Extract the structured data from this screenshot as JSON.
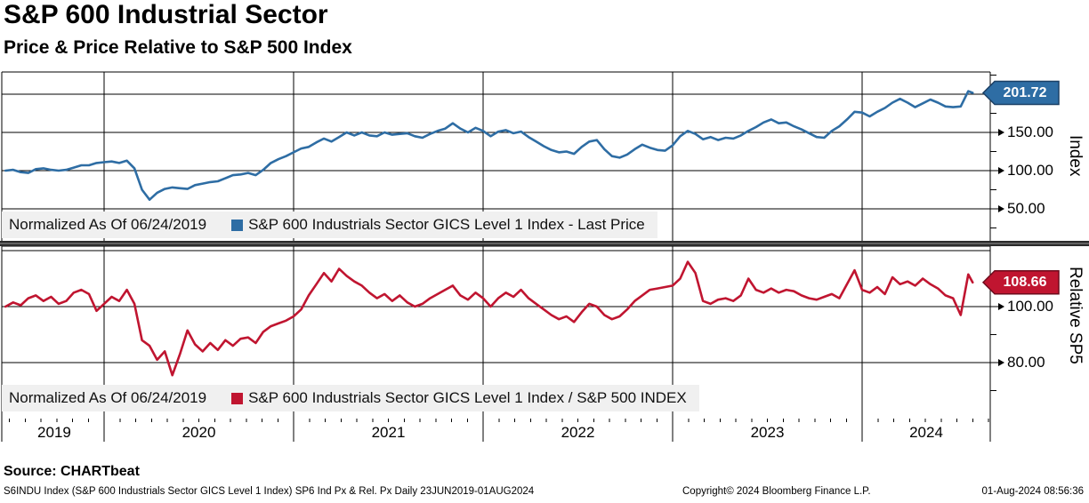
{
  "header": {
    "title": "S&P 600 Industrial Sector",
    "subtitle": "Price & Price Relative to S&P 500 Index"
  },
  "colors": {
    "blue": "#2e6da4",
    "red": "#c01530",
    "badge_blue_border": "#1b4066",
    "badge_red_border": "#6e0b1c",
    "grid": "#000000",
    "separator": "#2b2b2b",
    "legend_bg": "#f0f0f0"
  },
  "panels": [
    {
      "name": "price",
      "axis_title": "Index",
      "badge": "201.72",
      "legend": {
        "normalized": "Normalized As Of 06/24/2019",
        "series_label": "S&P 600 Industrials Sector GICS Level 1 Index - Last Price"
      },
      "ticks": [
        {
          "label": "150.00",
          "value": 150
        },
        {
          "label": "100.00",
          "value": 100
        },
        {
          "label": "50.00",
          "value": 50
        }
      ],
      "minor_ticks": [
        225,
        175,
        125,
        75,
        25
      ],
      "gridlines": [
        200,
        150,
        100,
        50
      ]
    },
    {
      "name": "relative",
      "axis_title": "Relative SP5",
      "badge": "108.66",
      "legend": {
        "normalized": "Normalized As Of 06/24/2019",
        "series_label": "S&P 600 Industrials Sector GICS Level 1 Index / S&P 500 INDEX"
      },
      "ticks": [
        {
          "label": "100.00",
          "value": 100
        },
        {
          "label": "80.00",
          "value": 80
        }
      ],
      "minor_ticks": [
        110,
        90,
        70
      ],
      "gridlines": [
        120,
        100,
        80
      ]
    }
  ],
  "x_axis": {
    "years": [
      "2019",
      "2020",
      "2021",
      "2022",
      "2023",
      "2024"
    ],
    "start": 2019.474,
    "end": 2024.583
  },
  "source": "Source: CHARTbeat",
  "footer": {
    "left": "S6INDU Index (S&P 600 Industrials Sector GICS Level 1 Index) SP6 Ind Px & Rel. Px  Daily 23JUN2019-01AUG2024",
    "center": "Copyright© 2024 Bloomberg Finance L.P.",
    "right": "01-Aug-2024 08:56:36"
  },
  "chart_data": [
    {
      "type": "line",
      "name": "S&P 600 Industrials Sector GICS Level 1 Index - Last Price",
      "panel": "price",
      "color": "#2e6da4",
      "normalized_as_of": "06/24/2019",
      "x0": 2019.48,
      "dx": 0.04,
      "x_end": 2024.583,
      "ylim": [
        8.1,
        229.1
      ],
      "last": 201.72,
      "values": [
        100,
        101,
        98,
        97,
        102,
        103,
        101,
        100,
        101,
        104,
        107,
        107,
        110,
        111,
        112,
        110,
        113,
        103,
        75,
        62,
        71,
        76,
        78,
        77,
        76,
        81,
        83,
        85,
        86,
        90,
        94,
        95,
        97,
        94,
        101,
        110,
        115,
        119,
        124,
        129,
        131,
        137,
        142,
        138,
        144,
        150,
        146,
        150,
        146,
        145,
        150,
        147,
        148,
        149,
        145,
        143,
        148,
        152,
        155,
        162,
        155,
        150,
        156,
        152,
        145,
        151,
        153,
        149,
        151,
        144,
        138,
        132,
        127,
        124,
        125,
        122,
        131,
        138,
        140,
        128,
        119,
        117,
        121,
        128,
        134,
        130,
        127,
        126,
        133,
        145,
        152,
        148,
        141,
        144,
        140,
        143,
        142,
        146,
        152,
        157,
        163,
        167,
        162,
        163,
        158,
        154,
        149,
        144,
        143,
        152,
        158,
        167,
        177,
        176,
        171,
        177,
        182,
        189,
        194,
        189,
        183,
        188,
        193,
        189,
        184,
        183,
        184,
        204,
        201.72
      ]
    },
    {
      "type": "line",
      "name": "S&P 600 Industrials Sector GICS Level 1 Index / S&P 500 INDEX",
      "panel": "relative",
      "color": "#c01530",
      "normalized_as_of": "06/24/2019",
      "x0": 2019.48,
      "dx": 0.04,
      "x_end": 2024.583,
      "ylim": [
        60,
        121.6
      ],
      "last": 108.66,
      "values": [
        100,
        101.5,
        100.5,
        103,
        104,
        102,
        103.5,
        101,
        102,
        105,
        106,
        104.5,
        98.5,
        101,
        103.5,
        102,
        106,
        101,
        88,
        86,
        81,
        84,
        75.5,
        83,
        91.5,
        86.5,
        84,
        87,
        84.5,
        88,
        86,
        88.5,
        89,
        87,
        91,
        93,
        94,
        95,
        96.5,
        99,
        104,
        108,
        112,
        109,
        113.5,
        111,
        109,
        107.5,
        105,
        103,
        104.5,
        102,
        104,
        101.5,
        100,
        101,
        103,
        104.5,
        106,
        107.5,
        104,
        102.5,
        105,
        103,
        100,
        103,
        105,
        103.5,
        106,
        103,
        101,
        99,
        97,
        95.5,
        96.5,
        94.5,
        98,
        101,
        100,
        97,
        95.5,
        96.5,
        99,
        102,
        104,
        106,
        106.5,
        107,
        107.5,
        110,
        116,
        112,
        102,
        101,
        102.5,
        103,
        102,
        104,
        110,
        106,
        105,
        106.5,
        105,
        106,
        105.5,
        104,
        103,
        102.5,
        103.5,
        104.5,
        103,
        108,
        113,
        106,
        105,
        107,
        104.5,
        110.5,
        108,
        109,
        107.5,
        110,
        108,
        106.5,
        104,
        103,
        97,
        111.5,
        108.66
      ]
    }
  ]
}
